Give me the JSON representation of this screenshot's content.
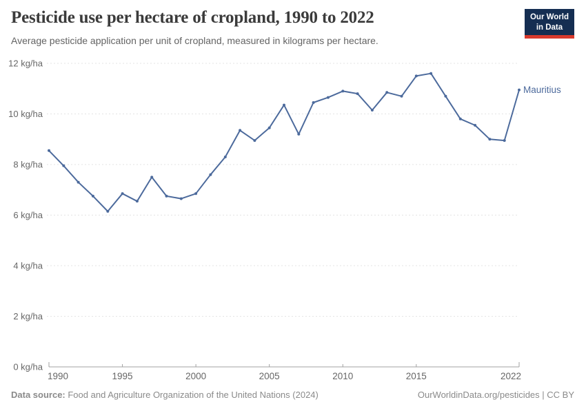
{
  "header": {
    "title": "Pesticide use per hectare of cropland, 1990 to 2022",
    "subtitle": "Average pesticide application per unit of cropland, measured in kilograms per hectare.",
    "logo": {
      "line1": "Our World",
      "line2": "in Data"
    }
  },
  "chart_data": {
    "type": "line",
    "title": "Pesticide use per hectare of cropland, 1990 to 2022",
    "subtitle": "Average pesticide application per unit of cropland, measured in kilograms per hectare.",
    "unit": "kg/ha",
    "x": [
      1990,
      1991,
      1992,
      1993,
      1994,
      1995,
      1996,
      1997,
      1998,
      1999,
      2000,
      2001,
      2002,
      2003,
      2004,
      2005,
      2006,
      2007,
      2008,
      2009,
      2010,
      2011,
      2012,
      2013,
      2014,
      2015,
      2016,
      2017,
      2018,
      2019,
      2020,
      2021,
      2022
    ],
    "series": [
      {
        "name": "Mauritius",
        "color": "#4c6a9c",
        "values": [
          8.55,
          7.95,
          7.3,
          6.75,
          6.15,
          6.85,
          6.55,
          7.5,
          6.75,
          6.65,
          6.85,
          7.6,
          8.3,
          9.35,
          8.95,
          9.45,
          10.35,
          9.2,
          10.45,
          10.65,
          10.9,
          10.8,
          10.15,
          10.85,
          10.7,
          11.5,
          11.6,
          10.7,
          9.8,
          9.55,
          9.0,
          8.95,
          10.95
        ]
      }
    ],
    "xlim": [
      1990,
      2022
    ],
    "ylim": [
      0,
      12
    ],
    "xticks": [
      1990,
      1995,
      2000,
      2005,
      2010,
      2015,
      2022
    ],
    "yticks": [
      {
        "value": 0,
        "label": "0 kg/ha"
      },
      {
        "value": 2,
        "label": "2 kg/ha"
      },
      {
        "value": 4,
        "label": "4 kg/ha"
      },
      {
        "value": 6,
        "label": "6 kg/ha"
      },
      {
        "value": 8,
        "label": "8 kg/ha"
      },
      {
        "value": 10,
        "label": "10 kg/ha"
      },
      {
        "value": 12,
        "label": "12 kg/ha"
      }
    ],
    "grid": "horizontal-dashed",
    "legend_position": "end-of-line-label",
    "entity_label": "Mauritius"
  },
  "footer": {
    "source_label": "Data source:",
    "source_text": " Food and Agriculture Organization of the United Nations (2024)",
    "credit": "OurWorldinData.org/pesticides | CC BY"
  },
  "colors": {
    "series": "#4c6a9c",
    "logo_bg": "#152e52",
    "logo_stripe": "#d93a2d",
    "grid": "#e3e3e3",
    "axis": "#a1a1a1",
    "tick_text": "#666666",
    "footer_text": "#8a8a8a",
    "title_text": "#3b3b3b"
  }
}
